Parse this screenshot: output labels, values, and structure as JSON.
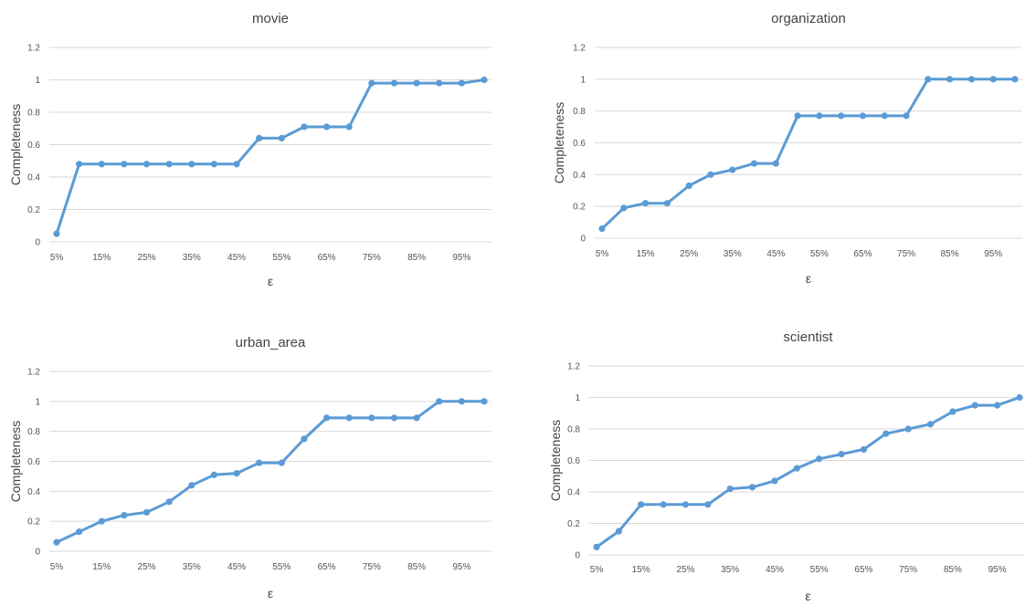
{
  "chart_data": [
    {
      "type": "line",
      "title": "movie",
      "xlabel": "ε",
      "ylabel": "Completeness",
      "ylim": [
        0,
        1.2
      ],
      "yticks": [
        "0",
        "0.2",
        "0.4",
        "0.6",
        "0.8",
        "1",
        "1.2"
      ],
      "x": [
        "5%",
        "10%",
        "15%",
        "20%",
        "25%",
        "30%",
        "35%",
        "40%",
        "45%",
        "50%",
        "55%",
        "60%",
        "65%",
        "70%",
        "75%",
        "80%",
        "85%",
        "90%",
        "95%",
        "100%"
      ],
      "x_tick_labels": [
        "5%",
        "15%",
        "25%",
        "35%",
        "45%",
        "55%",
        "65%",
        "75%",
        "85%",
        "95%"
      ],
      "grid": true,
      "color": "#5b9bd5",
      "series": [
        {
          "values": [
            0.05,
            0.48,
            0.48,
            0.48,
            0.48,
            0.48,
            0.48,
            0.48,
            0.48,
            0.64,
            0.64,
            0.71,
            0.71,
            0.71,
            0.98,
            0.98,
            0.98,
            0.98,
            0.98,
            1.0
          ]
        }
      ]
    },
    {
      "type": "line",
      "title": "organization",
      "xlabel": "ε",
      "ylabel": "Completeness",
      "ylim": [
        0,
        1.2
      ],
      "yticks": [
        "0",
        "0.2",
        "0.4",
        "0.6",
        "0.8",
        "1",
        "1.2"
      ],
      "x": [
        "5%",
        "10%",
        "15%",
        "20%",
        "25%",
        "30%",
        "35%",
        "40%",
        "45%",
        "50%",
        "55%",
        "60%",
        "65%",
        "70%",
        "75%",
        "80%",
        "85%",
        "90%",
        "95%",
        "100%"
      ],
      "x_tick_labels": [
        "5%",
        "15%",
        "25%",
        "35%",
        "45%",
        "55%",
        "65%",
        "75%",
        "85%",
        "95%"
      ],
      "grid": true,
      "color": "#5b9bd5",
      "series": [
        {
          "values": [
            0.06,
            0.19,
            0.22,
            0.22,
            0.33,
            0.4,
            0.43,
            0.47,
            0.47,
            0.77,
            0.77,
            0.77,
            0.77,
            0.77,
            0.77,
            1.0,
            1.0,
            1.0,
            1.0,
            1.0
          ]
        }
      ]
    },
    {
      "type": "line",
      "title": "urban_area",
      "xlabel": "ε",
      "ylabel": "Completeness",
      "ylim": [
        0,
        1.2
      ],
      "yticks": [
        "0",
        "0.2",
        "0.4",
        "0.6",
        "0.8",
        "1",
        "1.2"
      ],
      "x": [
        "5%",
        "10%",
        "15%",
        "20%",
        "25%",
        "30%",
        "35%",
        "40%",
        "45%",
        "50%",
        "55%",
        "60%",
        "65%",
        "70%",
        "75%",
        "80%",
        "85%",
        "90%",
        "95%",
        "100%"
      ],
      "x_tick_labels": [
        "5%",
        "15%",
        "25%",
        "35%",
        "45%",
        "55%",
        "65%",
        "75%",
        "85%",
        "95%"
      ],
      "grid": true,
      "color": "#5b9bd5",
      "series": [
        {
          "values": [
            0.06,
            0.13,
            0.2,
            0.24,
            0.26,
            0.33,
            0.44,
            0.51,
            0.52,
            0.59,
            0.59,
            0.75,
            0.89,
            0.89,
            0.89,
            0.89,
            0.89,
            1.0,
            1.0,
            1.0
          ]
        }
      ]
    },
    {
      "type": "line",
      "title": "scientist",
      "xlabel": "ε",
      "ylabel": "Completeness",
      "ylim": [
        0,
        1.2
      ],
      "yticks": [
        "0",
        "0.2",
        "0.4",
        "0.6",
        "0.8",
        "1",
        "1.2"
      ],
      "x": [
        "5%",
        "10%",
        "15%",
        "20%",
        "25%",
        "30%",
        "35%",
        "40%",
        "45%",
        "50%",
        "55%",
        "60%",
        "65%",
        "70%",
        "75%",
        "80%",
        "85%",
        "90%",
        "95%",
        "100%"
      ],
      "x_tick_labels": [
        "5%",
        "15%",
        "25%",
        "35%",
        "45%",
        "55%",
        "65%",
        "75%",
        "85%",
        "95%"
      ],
      "grid": true,
      "color": "#5b9bd5",
      "series": [
        {
          "values": [
            0.05,
            0.15,
            0.32,
            0.32,
            0.32,
            0.32,
            0.42,
            0.43,
            0.47,
            0.55,
            0.61,
            0.64,
            0.67,
            0.77,
            0.8,
            0.83,
            0.91,
            0.95,
            0.95,
            1.0
          ]
        }
      ]
    }
  ]
}
